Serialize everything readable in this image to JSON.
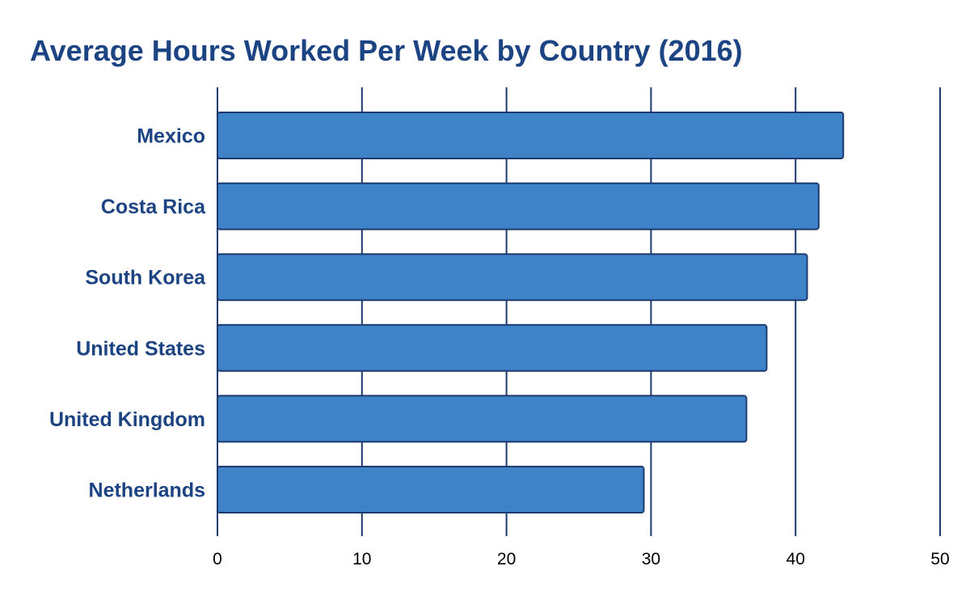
{
  "chart_data": {
    "type": "bar",
    "orientation": "horizontal",
    "title": "Average Hours Worked Per Week by Country (2016)",
    "xlabel": "",
    "ylabel": "",
    "categories": [
      "Mexico",
      "Costa Rica",
      "South Korea",
      "United States",
      "United Kingdom",
      "Netherlands"
    ],
    "values": [
      43.3,
      41.6,
      40.8,
      38.0,
      36.6,
      29.5
    ],
    "xlim": [
      0,
      50
    ],
    "xticks": [
      "0",
      "10",
      "20",
      "30",
      "40",
      "50"
    ],
    "grid": true,
    "legend": "none",
    "colors": {
      "bar": "#3e82c7",
      "bar_stroke": "#1c3a6e",
      "text": "#1c4483",
      "grid": "#1c3a6e"
    }
  }
}
